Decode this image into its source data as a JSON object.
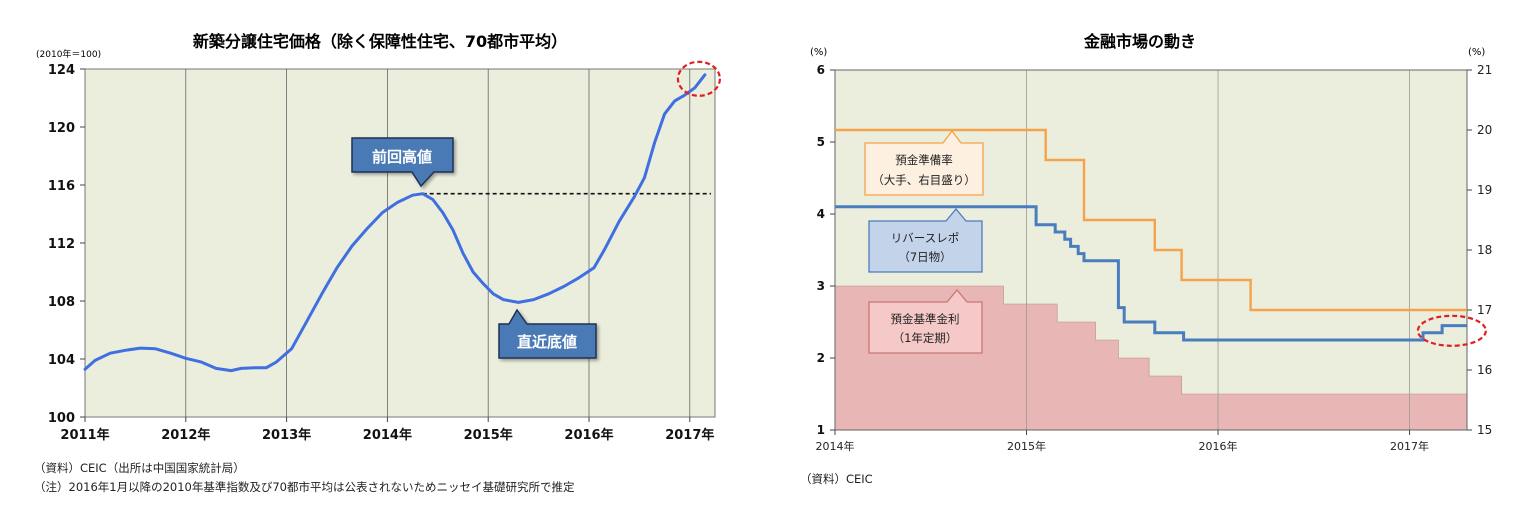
{
  "chart_data": [
    {
      "type": "line",
      "title": "新築分譲住宅価格（除く保障性住宅、70都市平均）",
      "y_unit": "(2010年＝100)",
      "ylim": [
        100,
        124
      ],
      "y_ticks": [
        "124",
        "120",
        "116",
        "112",
        "108",
        "104",
        "100"
      ],
      "x_ticks": [
        "2011年",
        "2012年",
        "2013年",
        "2014年",
        "2015年",
        "2016年",
        "2017年"
      ],
      "series": [
        {
          "color": "#3f6fe0",
          "points": [
            [
              2011.0,
              103.3
            ],
            [
              2011.1,
              103.9
            ],
            [
              2011.25,
              104.4
            ],
            [
              2011.4,
              104.6
            ],
            [
              2011.55,
              104.75
            ],
            [
              2011.7,
              104.7
            ],
            [
              2011.85,
              104.4
            ],
            [
              2012.0,
              104.05
            ],
            [
              2012.15,
              103.8
            ],
            [
              2012.3,
              103.35
            ],
            [
              2012.45,
              103.2
            ],
            [
              2012.55,
              103.35
            ],
            [
              2012.7,
              103.4
            ],
            [
              2012.8,
              103.4
            ],
            [
              2012.9,
              103.8
            ],
            [
              2013.05,
              104.7
            ],
            [
              2013.2,
              106.6
            ],
            [
              2013.35,
              108.5
            ],
            [
              2013.5,
              110.3
            ],
            [
              2013.65,
              111.8
            ],
            [
              2013.8,
              113.0
            ],
            [
              2013.95,
              114.1
            ],
            [
              2014.1,
              114.8
            ],
            [
              2014.25,
              115.3
            ],
            [
              2014.35,
              115.4
            ],
            [
              2014.45,
              115.0
            ],
            [
              2014.55,
              114.1
            ],
            [
              2014.65,
              112.9
            ],
            [
              2014.75,
              111.3
            ],
            [
              2014.85,
              110.0
            ],
            [
              2014.95,
              109.2
            ],
            [
              2015.05,
              108.5
            ],
            [
              2015.15,
              108.1
            ],
            [
              2015.3,
              107.9
            ],
            [
              2015.45,
              108.1
            ],
            [
              2015.6,
              108.5
            ],
            [
              2015.75,
              109.0
            ],
            [
              2015.9,
              109.6
            ],
            [
              2016.05,
              110.3
            ],
            [
              2016.15,
              111.5
            ],
            [
              2016.3,
              113.5
            ],
            [
              2016.45,
              115.2
            ],
            [
              2016.55,
              116.5
            ],
            [
              2016.65,
              118.9
            ],
            [
              2016.75,
              120.9
            ],
            [
              2016.85,
              121.8
            ],
            [
              2016.95,
              122.2
            ],
            [
              2017.05,
              122.7
            ],
            [
              2017.15,
              123.6
            ]
          ]
        }
      ],
      "reference_line": {
        "y": 115.4,
        "style": "dashed"
      },
      "annotations": [
        {
          "text": "前回高値",
          "x": 2014.35,
          "y": 115.4
        },
        {
          "text": "直近底値",
          "x": 2015.3,
          "y": 107.9
        }
      ],
      "highlight_circle": {
        "x": 2017.15,
        "y": 123.6,
        "color": "#e02020"
      },
      "grid": "vertical-at-years"
    },
    {
      "type": "line",
      "title": "金融市場の動き",
      "y_left_unit": "(%)",
      "y_right_unit": "(%)",
      "ylim_left": [
        1,
        6
      ],
      "ylim_right": [
        15,
        21
      ],
      "y_left_ticks": [
        "6",
        "5",
        "4",
        "3",
        "2",
        "1"
      ],
      "y_right_ticks": [
        "21",
        "20",
        "19",
        "18",
        "17",
        "16",
        "15"
      ],
      "x_ticks": [
        "2014年",
        "2015年",
        "2016年",
        "2017年"
      ],
      "series": [
        {
          "name": "預金準備率（大手、右目盛り）",
          "axis": "right",
          "type": "step-line",
          "color": "#f5a24a",
          "points": [
            [
              2014.0,
              20.0
            ],
            [
              2015.1,
              20.0
            ],
            [
              2015.1,
              19.5
            ],
            [
              2015.3,
              19.5
            ],
            [
              2015.3,
              18.5
            ],
            [
              2015.67,
              18.5
            ],
            [
              2015.67,
              18.0
            ],
            [
              2015.81,
              18.0
            ],
            [
              2015.81,
              17.5
            ],
            [
              2016.17,
              17.5
            ],
            [
              2016.17,
              17.0
            ],
            [
              2017.3,
              17.0
            ]
          ]
        },
        {
          "name": "リバースレポ（7日物）",
          "axis": "left",
          "type": "step-line",
          "color": "#4a7dbd",
          "points": [
            [
              2014.0,
              4.1
            ],
            [
              2015.05,
              4.1
            ],
            [
              2015.05,
              3.85
            ],
            [
              2015.15,
              3.85
            ],
            [
              2015.15,
              3.75
            ],
            [
              2015.2,
              3.75
            ],
            [
              2015.2,
              3.65
            ],
            [
              2015.23,
              3.65
            ],
            [
              2015.23,
              3.55
            ],
            [
              2015.27,
              3.55
            ],
            [
              2015.27,
              3.45
            ],
            [
              2015.3,
              3.45
            ],
            [
              2015.3,
              3.35
            ],
            [
              2015.48,
              3.35
            ],
            [
              2015.48,
              2.7
            ],
            [
              2015.51,
              2.7
            ],
            [
              2015.51,
              2.5
            ],
            [
              2015.67,
              2.5
            ],
            [
              2015.67,
              2.35
            ],
            [
              2015.82,
              2.35
            ],
            [
              2015.82,
              2.25
            ],
            [
              2017.07,
              2.25
            ],
            [
              2017.07,
              2.35
            ],
            [
              2017.17,
              2.35
            ],
            [
              2017.17,
              2.45
            ],
            [
              2017.3,
              2.45
            ]
          ]
        },
        {
          "name": "預金基準金利（1年定期）",
          "axis": "left",
          "type": "step-area",
          "color": "#e8b6b4",
          "points": [
            [
              2014.0,
              3.0
            ],
            [
              2014.88,
              3.0
            ],
            [
              2014.88,
              2.75
            ],
            [
              2015.16,
              2.75
            ],
            [
              2015.16,
              2.5
            ],
            [
              2015.36,
              2.5
            ],
            [
              2015.36,
              2.25
            ],
            [
              2015.48,
              2.25
            ],
            [
              2015.48,
              2.0
            ],
            [
              2015.64,
              2.0
            ],
            [
              2015.64,
              1.75
            ],
            [
              2015.81,
              1.75
            ],
            [
              2015.81,
              1.5
            ],
            [
              2017.3,
              1.5
            ]
          ]
        }
      ],
      "highlight_circle": {
        "x": 2017.2,
        "y": 2.35,
        "color": "#e02020"
      },
      "grid": "vertical-at-years"
    }
  ],
  "notes": {
    "left_source": "（資料）CEIC（出所は中国国家統計局）",
    "left_note": "（注）2016年1月以降の2010年基準指数及び70都市平均は公表されないためニッセイ基礎研究所で推定",
    "right_source": "（資料）CEIC"
  },
  "colors": {
    "plot_bg": "#ebeedd",
    "callout_fill": "#4a7ab6",
    "reserve_box_fill": "#fdf0e0",
    "repo_box_fill": "#c3d3ea",
    "deposit_box_fill": "#f4c9c7"
  }
}
